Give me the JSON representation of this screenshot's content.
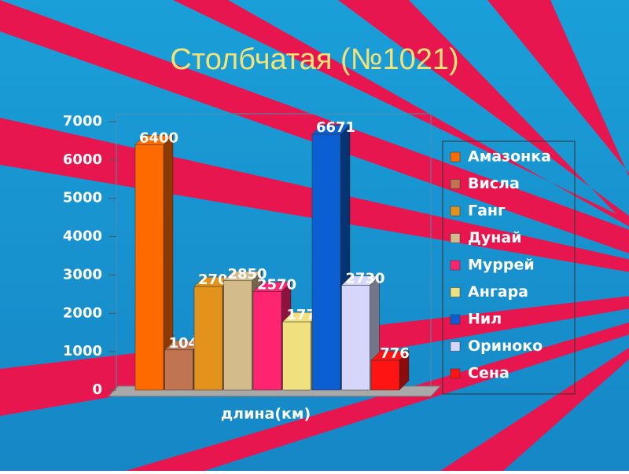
{
  "chart_data": {
    "type": "bar3d",
    "title": "Столбчатая (№1021)",
    "xlabel": "длина(км)",
    "series": [
      {
        "name": "Амазонка",
        "color": "#ff6a00",
        "values": [
          6400
        ]
      },
      {
        "name": "Висла",
        "color": "#c07450",
        "values": [
          1047
        ]
      },
      {
        "name": "Ганг",
        "color": "#e3921c",
        "values": [
          2700
        ]
      },
      {
        "name": "Дунай",
        "color": "#d4bb8c",
        "values": [
          2850
        ]
      },
      {
        "name": "Муррей",
        "color": "#ff2470",
        "values": [
          2570
        ]
      },
      {
        "name": "Ангара",
        "color": "#f0e07e",
        "values": [
          1779
        ]
      },
      {
        "name": "Нил",
        "color": "#0b5fd2",
        "values": [
          6671
        ]
      },
      {
        "name": "Ориноко",
        "color": "#d6d6fa",
        "values": [
          2730
        ]
      },
      {
        "name": "Сена",
        "color": "#ff1414",
        "values": [
          776
        ]
      }
    ],
    "ylim": [
      0,
      7000
    ],
    "yticks": [
      0,
      1000,
      2000,
      3000,
      4000,
      5000,
      6000,
      7000
    ],
    "grid": false,
    "legend": "right"
  }
}
